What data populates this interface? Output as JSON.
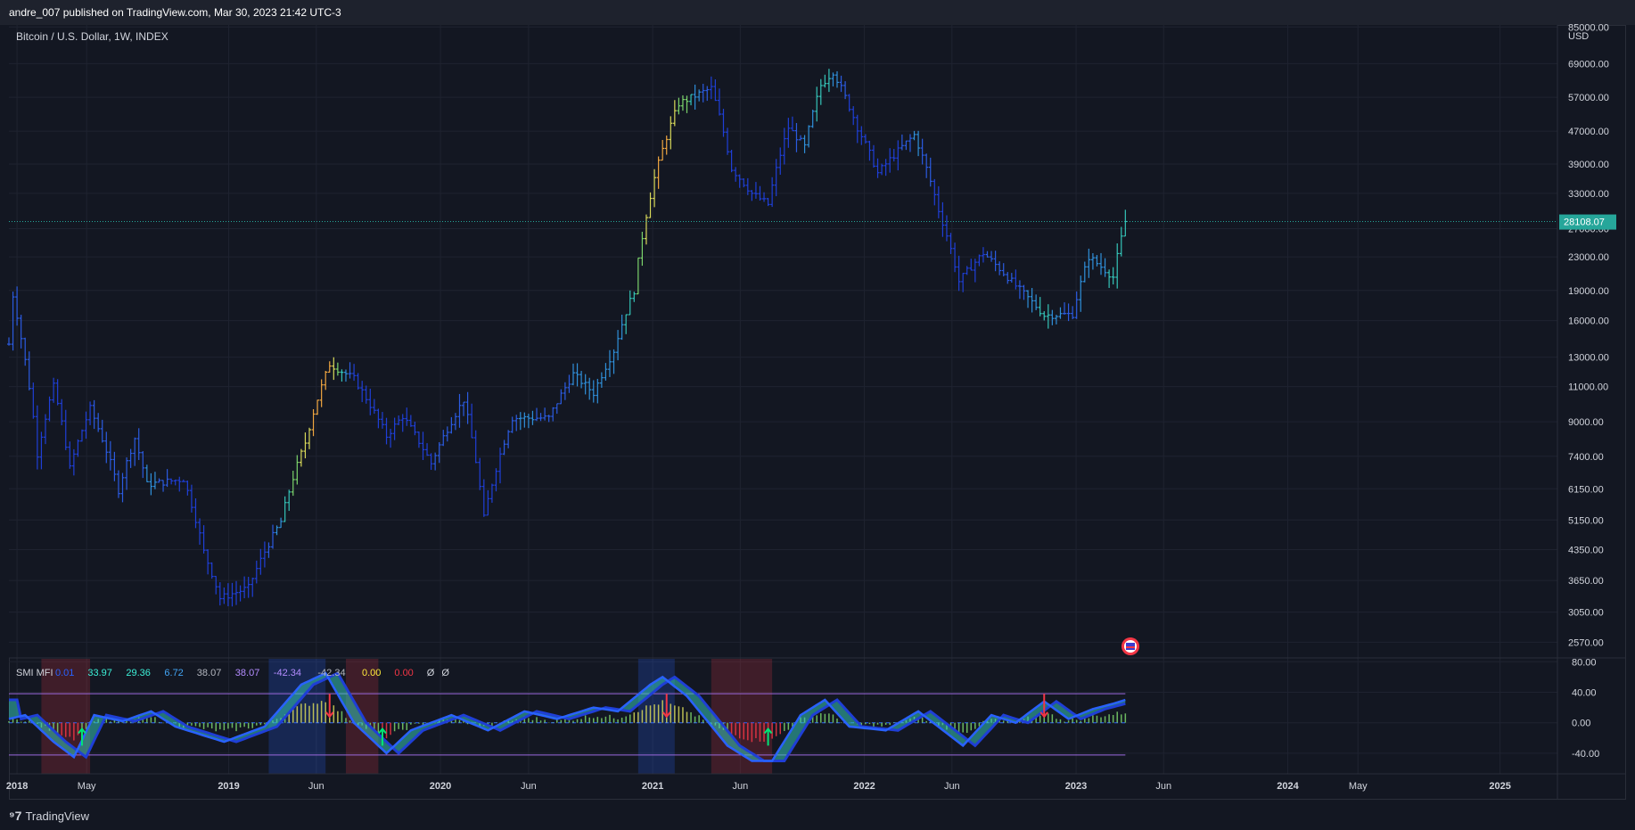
{
  "header": {
    "published_line": "andre_007 published on TradingView.com, Mar 30, 2023 21:42 UTC-3"
  },
  "footer": {
    "logo_text": "TradingView"
  },
  "colors": {
    "background": "#131722",
    "grid": "#1f2330",
    "last_price": "#26a69a",
    "smi_band": "#9c6ade",
    "blue_bar": "#1f3fd6"
  },
  "chart_data": [
    {
      "type": "bar",
      "title": "Bitcoin / U.S. Dollar, 1W, INDEX",
      "scale": "log",
      "currency_label": "USD",
      "yticks": [
        85000,
        69000,
        57000,
        47000,
        39000,
        33000,
        27000,
        23000,
        19000,
        16000,
        13000,
        11000,
        9000,
        7400,
        6150,
        5150,
        4350,
        3650,
        3050,
        2570
      ],
      "ytick_labels": [
        "85000.00",
        "69000.00",
        "57000.00",
        "47000.00",
        "39000.00",
        "33000.00",
        "27000.00",
        "23000.00",
        "19000.00",
        "16000.00",
        "13000.00",
        "11000.00",
        "9000.00",
        "7400.00",
        "6150.00",
        "5150.00",
        "4350.00",
        "3650.00",
        "3050.00",
        "2570.00"
      ],
      "x_labels": [
        "2018",
        "May",
        "2019",
        "Jun",
        "2020",
        "Jun",
        "2021",
        "Jun",
        "2022",
        "Jun",
        "2023",
        "Jun",
        "2024",
        "May",
        "2025"
      ],
      "x_label_dates": [
        "2018-01-01",
        "2018-05-01",
        "2019-01-01",
        "2019-06-01",
        "2020-01-01",
        "2020-06-01",
        "2021-01-01",
        "2021-06-01",
        "2022-01-01",
        "2022-06-01",
        "2023-01-01",
        "2023-06-01",
        "2024-01-01",
        "2024-05-01",
        "2025-01-01"
      ],
      "x_range": [
        "2017-12-18",
        "2025-04-10"
      ],
      "y_range": [
        2350,
        86000
      ],
      "last_price": 28108.07,
      "last_price_label": "28108.07",
      "grid": true,
      "anchor_prices": [
        {
          "date": "2017-12-18",
          "price": 14000
        },
        {
          "date": "2017-12-25",
          "price": 18500
        },
        {
          "date": "2018-01-08",
          "price": 14500
        },
        {
          "date": "2018-02-05",
          "price": 7500
        },
        {
          "date": "2018-03-05",
          "price": 11000
        },
        {
          "date": "2018-04-02",
          "price": 6900
        },
        {
          "date": "2018-05-07",
          "price": 9700
        },
        {
          "date": "2018-06-25",
          "price": 6100
        },
        {
          "date": "2018-07-23",
          "price": 8200
        },
        {
          "date": "2018-08-13",
          "price": 6300
        },
        {
          "date": "2018-10-15",
          "price": 6500
        },
        {
          "date": "2018-11-19",
          "price": 4300
        },
        {
          "date": "2018-12-17",
          "price": 3300
        },
        {
          "date": "2019-02-04",
          "price": 3500
        },
        {
          "date": "2019-04-01",
          "price": 5100
        },
        {
          "date": "2019-05-13",
          "price": 8000
        },
        {
          "date": "2019-06-24",
          "price": 12500
        },
        {
          "date": "2019-08-05",
          "price": 11500
        },
        {
          "date": "2019-09-30",
          "price": 8300
        },
        {
          "date": "2019-10-28",
          "price": 9300
        },
        {
          "date": "2019-12-16",
          "price": 7100
        },
        {
          "date": "2020-02-10",
          "price": 10200
        },
        {
          "date": "2020-03-16",
          "price": 5200
        },
        {
          "date": "2020-05-04",
          "price": 9200
        },
        {
          "date": "2020-07-06",
          "price": 9200
        },
        {
          "date": "2020-08-17",
          "price": 11800
        },
        {
          "date": "2020-09-21",
          "price": 10600
        },
        {
          "date": "2020-10-26",
          "price": 13500
        },
        {
          "date": "2020-11-30",
          "price": 19000
        },
        {
          "date": "2021-01-04",
          "price": 36000
        },
        {
          "date": "2021-02-15",
          "price": 55000
        },
        {
          "date": "2021-04-12",
          "price": 60000
        },
        {
          "date": "2021-05-17",
          "price": 38000
        },
        {
          "date": "2021-06-21",
          "price": 33000
        },
        {
          "date": "2021-07-19",
          "price": 31000
        },
        {
          "date": "2021-08-23",
          "price": 48000
        },
        {
          "date": "2021-09-20",
          "price": 43000
        },
        {
          "date": "2021-10-18",
          "price": 61000
        },
        {
          "date": "2021-11-08",
          "price": 66000
        },
        {
          "date": "2021-12-20",
          "price": 48000
        },
        {
          "date": "2022-01-24",
          "price": 37000
        },
        {
          "date": "2022-03-28",
          "price": 46000
        },
        {
          "date": "2022-05-09",
          "price": 30000
        },
        {
          "date": "2022-06-13",
          "price": 20000
        },
        {
          "date": "2022-07-25",
          "price": 23500
        },
        {
          "date": "2022-09-19",
          "price": 19500
        },
        {
          "date": "2022-11-07",
          "price": 16500
        },
        {
          "date": "2022-12-26",
          "price": 16600
        },
        {
          "date": "2023-01-23",
          "price": 23000
        },
        {
          "date": "2023-03-06",
          "price": 20500
        },
        {
          "date": "2023-03-27",
          "price": 28108
        }
      ]
    },
    {
      "type": "line",
      "title": "SMI MFI",
      "legend_values": [
        {
          "text": "0.01",
          "color": "#2962ff"
        },
        {
          "text": "33.97",
          "color": "#3cf0d8"
        },
        {
          "text": "29.36",
          "color": "#3cf0d8"
        },
        {
          "text": "6.72",
          "color": "#42a5f5"
        },
        {
          "text": "38.07",
          "color": "#b2b5be"
        },
        {
          "text": "38.07",
          "color": "#b38cff"
        },
        {
          "text": "-42.34",
          "color": "#b38cff"
        },
        {
          "text": "-42.34",
          "color": "#b2b5be"
        },
        {
          "text": "0.00",
          "color": "#ffeb3b"
        },
        {
          "text": "0.00",
          "color": "#f23645"
        },
        {
          "text": "Ø",
          "color": "#d1d4dc"
        },
        {
          "text": "Ø",
          "color": "#d1d4dc"
        }
      ],
      "yticks": [
        80,
        40,
        0,
        -40
      ],
      "ytick_labels": [
        "80.00",
        "40.00",
        "0.00",
        "-40.00"
      ],
      "y_range": [
        -67,
        85
      ],
      "upper_band": 38.07,
      "lower_band": -42.34,
      "highlight_zones": [
        {
          "start": "2018-02-12",
          "end": "2018-05-07",
          "kind": "bear"
        },
        {
          "start": "2019-03-11",
          "end": "2019-06-17",
          "kind": "bull"
        },
        {
          "start": "2019-07-22",
          "end": "2019-09-16",
          "kind": "bear"
        },
        {
          "start": "2020-12-07",
          "end": "2021-02-08",
          "kind": "bull"
        },
        {
          "start": "2021-04-12",
          "end": "2021-07-26",
          "kind": "bear"
        }
      ],
      "anchor_values": [
        {
          "date": "2017-12-18",
          "value": 5
        },
        {
          "date": "2018-01-15",
          "value": 10
        },
        {
          "date": "2018-03-05",
          "value": -25
        },
        {
          "date": "2018-04-09",
          "value": -45
        },
        {
          "date": "2018-05-14",
          "value": 10
        },
        {
          "date": "2018-07-02",
          "value": 2
        },
        {
          "date": "2018-08-20",
          "value": 15
        },
        {
          "date": "2018-10-01",
          "value": -5
        },
        {
          "date": "2018-12-24",
          "value": -25
        },
        {
          "date": "2019-03-04",
          "value": -5
        },
        {
          "date": "2019-05-06",
          "value": 50
        },
        {
          "date": "2019-06-17",
          "value": 65
        },
        {
          "date": "2019-08-05",
          "value": 0
        },
        {
          "date": "2019-09-30",
          "value": -40
        },
        {
          "date": "2019-11-11",
          "value": -10
        },
        {
          "date": "2020-01-20",
          "value": 10
        },
        {
          "date": "2020-03-23",
          "value": -10
        },
        {
          "date": "2020-05-25",
          "value": 15
        },
        {
          "date": "2020-07-20",
          "value": 5
        },
        {
          "date": "2020-09-21",
          "value": 20
        },
        {
          "date": "2020-11-02",
          "value": 15
        },
        {
          "date": "2020-12-28",
          "value": 50
        },
        {
          "date": "2021-01-18",
          "value": 60
        },
        {
          "date": "2021-03-01",
          "value": 35
        },
        {
          "date": "2021-05-10",
          "value": -30
        },
        {
          "date": "2021-06-21",
          "value": -50
        },
        {
          "date": "2021-07-26",
          "value": -50
        },
        {
          "date": "2021-09-13",
          "value": 10
        },
        {
          "date": "2021-10-25",
          "value": 30
        },
        {
          "date": "2021-12-06",
          "value": -5
        },
        {
          "date": "2022-02-07",
          "value": -10
        },
        {
          "date": "2022-04-04",
          "value": 15
        },
        {
          "date": "2022-06-20",
          "value": -30
        },
        {
          "date": "2022-08-08",
          "value": 10
        },
        {
          "date": "2022-09-19",
          "value": 0
        },
        {
          "date": "2022-11-07",
          "value": 28
        },
        {
          "date": "2022-12-19",
          "value": 5
        },
        {
          "date": "2023-01-30",
          "value": 18
        },
        {
          "date": "2023-03-06",
          "value": 25
        },
        {
          "date": "2023-03-27",
          "value": 30
        }
      ],
      "arrows_up": [
        "2018-04-23",
        "2019-09-23",
        "2021-07-19"
      ],
      "arrows_down": [
        "2019-06-24",
        "2021-01-25",
        "2022-11-07"
      ]
    }
  ]
}
